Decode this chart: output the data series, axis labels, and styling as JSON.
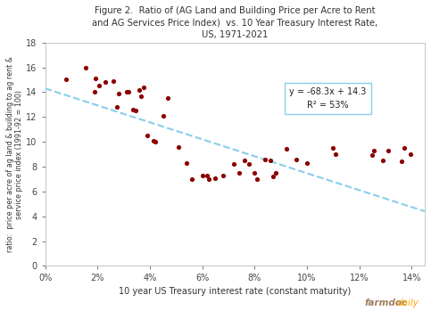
{
  "title": "Figure 2.  Ratio of (AG Land and Building Price per Acre to Rent\nand AG Services Price Index)  vs. 10 Year Treasury Interest Rate,\nUS, 1971-2021",
  "xlabel": "10 year US Treasury interest rate (constant maturity)",
  "ylabel": "ratio:  price per acre of ag land & building to ag rent &\nservice price index (1991-92 = 100)",
  "scatter_x": [
    0.0079,
    0.0155,
    0.0188,
    0.0193,
    0.0205,
    0.023,
    0.026,
    0.0275,
    0.028,
    0.031,
    0.032,
    0.0335,
    0.0345,
    0.036,
    0.0365,
    0.0375,
    0.039,
    0.0415,
    0.042,
    0.045,
    0.047,
    0.051,
    0.054,
    0.056,
    0.06,
    0.062,
    0.0625,
    0.065,
    0.068,
    0.072,
    0.074,
    0.076,
    0.078,
    0.08,
    0.081,
    0.084,
    0.086,
    0.087,
    0.088,
    0.092,
    0.096,
    0.1,
    0.11,
    0.111,
    0.125,
    0.1255,
    0.129,
    0.131,
    0.136,
    0.137,
    0.1395
  ],
  "scatter_y": [
    15.0,
    16.0,
    14.0,
    15.1,
    14.5,
    14.8,
    14.9,
    12.8,
    13.9,
    14.0,
    14.0,
    12.6,
    12.5,
    14.2,
    13.7,
    14.4,
    10.5,
    10.1,
    10.0,
    12.1,
    13.5,
    9.6,
    8.25,
    7.0,
    7.3,
    7.3,
    7.0,
    7.1,
    7.3,
    8.2,
    7.5,
    8.5,
    8.2,
    7.5,
    7.0,
    8.6,
    8.5,
    7.2,
    7.5,
    9.4,
    8.6,
    8.3,
    9.5,
    9.0,
    8.9,
    9.3,
    8.5,
    9.3,
    8.4,
    9.5,
    9.0
  ],
  "dot_color": "#8B0000",
  "line_color": "#87CEEB",
  "line_slope": -68.3,
  "line_intercept": 14.3,
  "equation_text": "y = -68.3x + 14.3",
  "r2_text": "R² = 53%",
  "xlim": [
    0,
    0.145
  ],
  "ylim": [
    0,
    18
  ],
  "yticks": [
    0,
    2,
    4,
    6,
    8,
    10,
    12,
    14,
    16,
    18
  ],
  "xticks": [
    0.0,
    0.02,
    0.04,
    0.06,
    0.08,
    0.1,
    0.12,
    0.14
  ],
  "background_color": "#ffffff",
  "plot_bg_color": "#ffffff",
  "farmdoc_color_main": "#a08060",
  "farmdoc_color_accent": "#FFA500"
}
